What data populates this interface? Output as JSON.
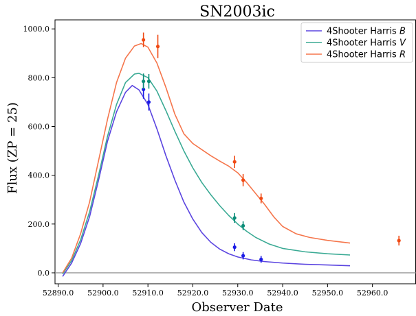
{
  "chart_data": {
    "type": "line",
    "title": "SN2003ic",
    "xlabel": "Observer Date",
    "ylabel": "Flux (ZP = 25)",
    "xlim": [
      52889.3,
      52969.7
    ],
    "ylim": [
      -45,
      1037
    ],
    "xticks": [
      52890.0,
      52900.0,
      52910.0,
      52920.0,
      52930.0,
      52940.0,
      52950.0,
      52960.0
    ],
    "xtick_labels": [
      "52890.0",
      "52900.0",
      "52910.0",
      "52920.0",
      "52930.0",
      "52940.0",
      "52950.0",
      "52960.0"
    ],
    "yticks": [
      0,
      200,
      400,
      600,
      800,
      1000
    ],
    "ytick_labels": [
      "0.0",
      "200.0",
      "400.0",
      "600.0",
      "800.0",
      "1000.0"
    ],
    "grid": false,
    "reference_line_y": 0,
    "legend_position": "top-right",
    "series": [
      {
        "name": "4Shooter Harris",
        "band": "B",
        "line_color": "#5b45e0",
        "point_color": "#1a1ae6",
        "curve": {
          "x": [
            52891.0,
            52893.0,
            52895.0,
            52897.0,
            52899.0,
            52901.0,
            52903.0,
            52905.0,
            52906.5,
            52908.0,
            52910.0,
            52912.0,
            52914.0,
            52916.0,
            52918.0,
            52920.0,
            52922.0,
            52924.0,
            52926.0,
            52928.0,
            52930.0,
            52933.0,
            52936.0,
            52940.0,
            52945.0,
            52950.0,
            52955.0
          ],
          "y": [
            -15,
            40,
            120,
            230,
            380,
            540,
            660,
            740,
            768,
            750,
            690,
            590,
            480,
            380,
            290,
            220,
            165,
            125,
            97,
            78,
            65,
            53,
            46,
            40,
            35,
            32,
            29
          ]
        },
        "points": [
          {
            "x": 52909.0,
            "y": 752,
            "err": 38
          },
          {
            "x": 52910.2,
            "y": 700,
            "err": 35
          },
          {
            "x": 52929.3,
            "y": 105,
            "err": 16
          },
          {
            "x": 52931.2,
            "y": 70,
            "err": 15
          },
          {
            "x": 52935.2,
            "y": 55,
            "err": 14
          }
        ]
      },
      {
        "name": "4Shooter Harris",
        "band": "V",
        "line_color": "#3aaa94",
        "point_color": "#0b8c78",
        "curve": {
          "x": [
            52891.0,
            52893.0,
            52895.0,
            52897.0,
            52899.0,
            52901.0,
            52903.0,
            52905.0,
            52907.0,
            52908.0,
            52910.0,
            52912.0,
            52914.0,
            52916.0,
            52918.0,
            52920.0,
            52922.0,
            52924.0,
            52926.0,
            52928.0,
            52930.0,
            52932.0,
            52934.0,
            52937.0,
            52940.0,
            52945.0,
            52950.0,
            52955.0
          ],
          "y": [
            -5,
            50,
            135,
            250,
            400,
            560,
            690,
            780,
            815,
            818,
            800,
            745,
            665,
            580,
            500,
            430,
            370,
            320,
            275,
            235,
            200,
            170,
            145,
            118,
            100,
            86,
            78,
            73
          ]
        },
        "points": [
          {
            "x": 52909.0,
            "y": 785,
            "err": 32
          },
          {
            "x": 52910.2,
            "y": 785,
            "err": 30
          },
          {
            "x": 52929.3,
            "y": 225,
            "err": 20
          },
          {
            "x": 52931.2,
            "y": 193,
            "err": 18
          }
        ]
      },
      {
        "name": "4Shooter Harris",
        "band": "R",
        "line_color": "#f5764c",
        "point_color": "#f04a14",
        "curve": {
          "x": [
            52891.0,
            52893.0,
            52895.0,
            52897.0,
            52899.0,
            52901.0,
            52903.0,
            52905.0,
            52907.0,
            52908.5,
            52910.0,
            52912.0,
            52914.0,
            52916.0,
            52918.0,
            52920.0,
            52922.0,
            52924.0,
            52926.0,
            52928.0,
            52930.0,
            52932.0,
            52934.0,
            52936.0,
            52938.0,
            52940.0,
            52943.0,
            52946.0,
            52950.0,
            52955.0
          ],
          "y": [
            0,
            60,
            160,
            290,
            460,
            630,
            780,
            880,
            930,
            940,
            925,
            860,
            760,
            650,
            570,
            530,
            505,
            480,
            458,
            437,
            410,
            370,
            325,
            280,
            230,
            190,
            160,
            145,
            133,
            122
          ]
        },
        "points": [
          {
            "x": 52909.0,
            "y": 955,
            "err": 30
          },
          {
            "x": 52912.2,
            "y": 928,
            "err": 48
          },
          {
            "x": 52929.3,
            "y": 455,
            "err": 25
          },
          {
            "x": 52931.2,
            "y": 380,
            "err": 25
          },
          {
            "x": 52935.2,
            "y": 305,
            "err": 20
          },
          {
            "x": 52965.9,
            "y": 132,
            "err": 20
          }
        ]
      }
    ]
  }
}
